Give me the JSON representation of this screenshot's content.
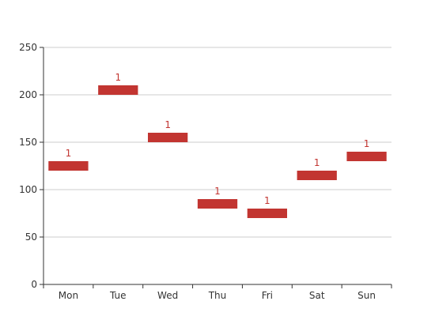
{
  "chart_data": {
    "type": "bar",
    "categories": [
      "Mon",
      "Tue",
      "Wed",
      "Thu",
      "Fri",
      "Sat",
      "Sun"
    ],
    "series": [
      {
        "values": [
          {
            "low": 120,
            "high": 130
          },
          {
            "low": 200,
            "high": 210
          },
          {
            "low": 150,
            "high": 160
          },
          {
            "low": 80,
            "high": 90
          },
          {
            "low": 70,
            "high": 80
          },
          {
            "low": 110,
            "high": 120
          },
          {
            "low": 130,
            "high": 140
          }
        ],
        "data_labels": [
          "1",
          "1",
          "1",
          "1",
          "1",
          "1",
          "1"
        ],
        "color": "#c23531"
      }
    ],
    "y_ticks": [
      "0",
      "50",
      "100",
      "150",
      "200",
      "250"
    ],
    "ylim": [
      0,
      250
    ],
    "grid": true,
    "title": "",
    "xlabel": "",
    "ylabel": ""
  }
}
